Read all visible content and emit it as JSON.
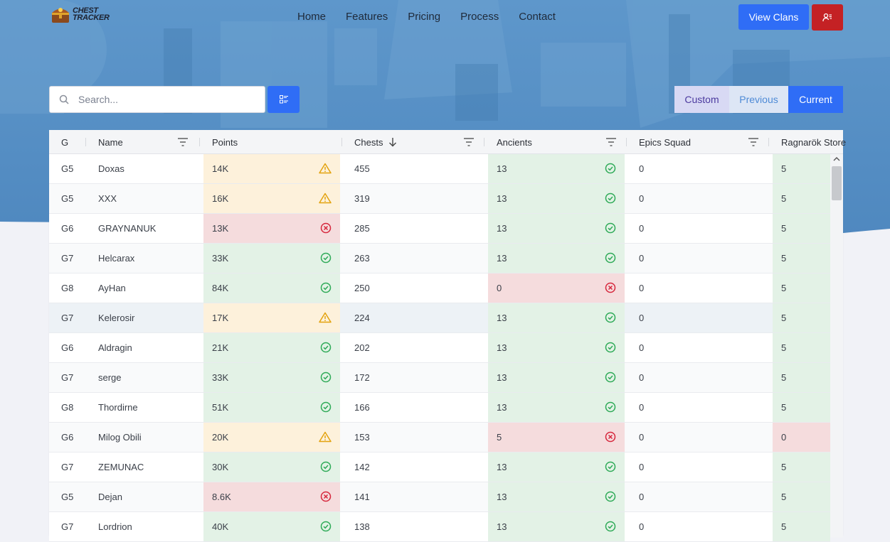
{
  "brand": {
    "line1": "CHEST",
    "line2": "TRACKER"
  },
  "nav": {
    "links": [
      "Home",
      "Features",
      "Pricing",
      "Process",
      "Contact"
    ],
    "view_clans": "View Clans"
  },
  "search": {
    "placeholder": "Search...",
    "value": ""
  },
  "period": {
    "custom": "Custom",
    "previous": "Previous",
    "current": "Current",
    "selected": "Current"
  },
  "table": {
    "columns": {
      "g": "G",
      "name": "Name",
      "points": "Points",
      "chests": "Chests",
      "ancients": "Ancients",
      "epics": "Epics Squad",
      "ragnarok": "Ragnarök Store"
    },
    "sort": {
      "column": "Chests",
      "direction": "descending"
    },
    "rows": [
      {
        "g": "G5",
        "name": "Doxas",
        "points": "14K",
        "points_status": "warn",
        "chests": "455",
        "ancients": "13",
        "ancients_status": "ok",
        "epics": "0",
        "ragnarok": "5",
        "ragnarok_status": "ok"
      },
      {
        "g": "G5",
        "name": "XXX",
        "points": "16K",
        "points_status": "warn",
        "chests": "319",
        "ancients": "13",
        "ancients_status": "ok",
        "epics": "0",
        "ragnarok": "5",
        "ragnarok_status": "ok"
      },
      {
        "g": "G6",
        "name": "GRAYNANUK",
        "points": "13K",
        "points_status": "bad",
        "chests": "285",
        "ancients": "13",
        "ancients_status": "ok",
        "epics": "0",
        "ragnarok": "5",
        "ragnarok_status": "ok"
      },
      {
        "g": "G7",
        "name": "Helcarax",
        "points": "33K",
        "points_status": "ok",
        "chests": "263",
        "ancients": "13",
        "ancients_status": "ok",
        "epics": "0",
        "ragnarok": "5",
        "ragnarok_status": "ok"
      },
      {
        "g": "G8",
        "name": "AyHan",
        "points": "84K",
        "points_status": "ok",
        "chests": "250",
        "ancients": "0",
        "ancients_status": "bad",
        "epics": "0",
        "ragnarok": "5",
        "ragnarok_status": "ok"
      },
      {
        "g": "G7",
        "name": "Kelerosir",
        "points": "17K",
        "points_status": "warn",
        "chests": "224",
        "ancients": "13",
        "ancients_status": "ok",
        "epics": "0",
        "ragnarok": "5",
        "ragnarok_status": "ok"
      },
      {
        "g": "G6",
        "name": "Aldragin",
        "points": "21K",
        "points_status": "ok",
        "chests": "202",
        "ancients": "13",
        "ancients_status": "ok",
        "epics": "0",
        "ragnarok": "5",
        "ragnarok_status": "ok"
      },
      {
        "g": "G7",
        "name": "serge",
        "points": "33K",
        "points_status": "ok",
        "chests": "172",
        "ancients": "13",
        "ancients_status": "ok",
        "epics": "0",
        "ragnarok": "5",
        "ragnarok_status": "ok"
      },
      {
        "g": "G8",
        "name": "Thordirne",
        "points": "51K",
        "points_status": "ok",
        "chests": "166",
        "ancients": "13",
        "ancients_status": "ok",
        "epics": "0",
        "ragnarok": "5",
        "ragnarok_status": "ok"
      },
      {
        "g": "G6",
        "name": "Milog Obili",
        "points": "20K",
        "points_status": "warn",
        "chests": "153",
        "ancients": "5",
        "ancients_status": "bad",
        "epics": "0",
        "ragnarok": "0",
        "ragnarok_status": "bad"
      },
      {
        "g": "G7",
        "name": "ZEMUNAC",
        "points": "30K",
        "points_status": "ok",
        "chests": "142",
        "ancients": "13",
        "ancients_status": "ok",
        "epics": "0",
        "ragnarok": "5",
        "ragnarok_status": "ok"
      },
      {
        "g": "G5",
        "name": "Dejan",
        "points": "8.6K",
        "points_status": "bad",
        "chests": "141",
        "ancients": "13",
        "ancients_status": "ok",
        "epics": "0",
        "ragnarok": "5",
        "ragnarok_status": "ok"
      },
      {
        "g": "G7",
        "name": "Lordrion",
        "points": "40K",
        "points_status": "ok",
        "chests": "138",
        "ancients": "13",
        "ancients_status": "ok",
        "epics": "0",
        "ragnarok": "5",
        "ragnarok_status": "ok"
      }
    ]
  },
  "colors": {
    "primary": "#2f6df6",
    "danger": "#c42124",
    "ok_bg": "#e3f2e6",
    "warn_bg": "#fdf1db",
    "bad_bg": "#f5dcdd",
    "hero": "#5a93c8"
  },
  "icons": {
    "search": "search-icon",
    "filter_list": "list-filter-icon",
    "user": "user-settings-icon",
    "column_filter": "column-filter-icon",
    "sort_down": "arrow-down-icon",
    "ok": "check-circle-icon",
    "warn": "warning-triangle-icon",
    "bad": "x-circle-icon"
  }
}
